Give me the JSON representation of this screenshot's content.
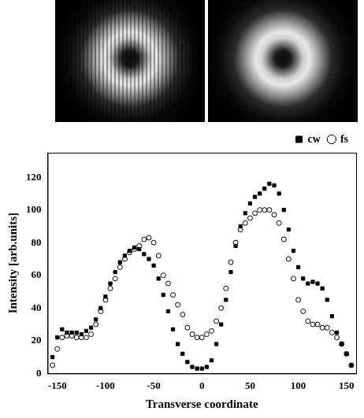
{
  "chart_data": {
    "type": "scatter",
    "x_label": "Transverse coordinate",
    "y_label": "Intensity [arb.units]",
    "x": [
      -155,
      -150,
      -145,
      -140,
      -135,
      -130,
      -125,
      -120,
      -115,
      -110,
      -105,
      -100,
      -95,
      -90,
      -85,
      -80,
      -75,
      -70,
      -65,
      -60,
      -55,
      -50,
      -45,
      -40,
      -35,
      -30,
      -25,
      -20,
      -15,
      -10,
      -5,
      0,
      5,
      10,
      15,
      20,
      25,
      30,
      35,
      40,
      45,
      50,
      55,
      60,
      65,
      70,
      75,
      80,
      85,
      90,
      95,
      100,
      105,
      110,
      115,
      120,
      125,
      130,
      135,
      140,
      145,
      150,
      155
    ],
    "series": [
      {
        "name": "cw",
        "color": "#000000",
        "marker": "square",
        "values": [
          10,
          22,
          27,
          25,
          25,
          25,
          24,
          26,
          28,
          33,
          40,
          47,
          55,
          62,
          68,
          72,
          75,
          77,
          76,
          73,
          70,
          66,
          58,
          48,
          38,
          27,
          18,
          12,
          7,
          4,
          3,
          3,
          4,
          8,
          18,
          30,
          45,
          62,
          78,
          90,
          98,
          104,
          108,
          110,
          113,
          116,
          115,
          110,
          100,
          88,
          75,
          65,
          58,
          55,
          56,
          55,
          52,
          45,
          35,
          25,
          18,
          12,
          5
        ]
      },
      {
        "name": "fs",
        "color": "#000000",
        "marker": "open_circle",
        "values": [
          5,
          15,
          22,
          23,
          23,
          22,
          22,
          22,
          24,
          30,
          38,
          45,
          52,
          58,
          65,
          70,
          74,
          76,
          78,
          82,
          83,
          80,
          72,
          60,
          55,
          48,
          42,
          36,
          28,
          24,
          22,
          22,
          24,
          26,
          32,
          40,
          52,
          68,
          80,
          88,
          92,
          95,
          98,
          100,
          100,
          100,
          97,
          92,
          82,
          70,
          58,
          45,
          38,
          32,
          30,
          30,
          28,
          28,
          25,
          22,
          18,
          12,
          5
        ]
      }
    ],
    "xlim": [
      -160,
      160
    ],
    "xticks": [
      -150,
      -100,
      -50,
      0,
      50,
      100,
      150
    ],
    "ylim": [
      0,
      135
    ],
    "yticks": [
      0,
      20,
      40,
      60,
      80,
      100,
      120
    ],
    "grid": false,
    "legend": "top-right"
  }
}
